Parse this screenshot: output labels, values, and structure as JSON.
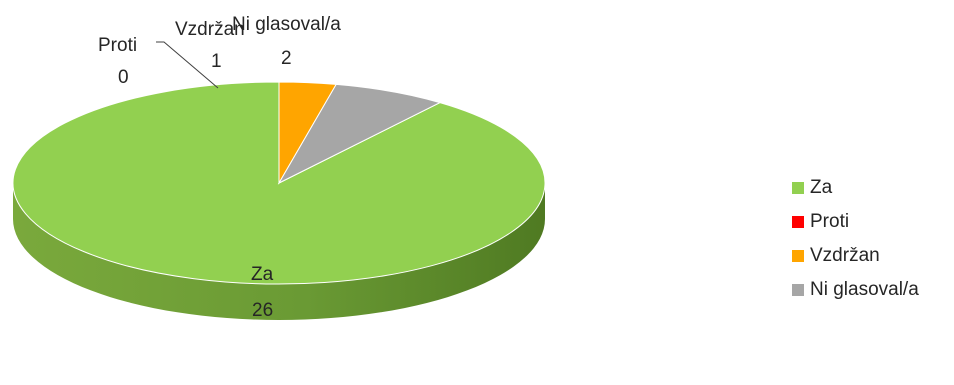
{
  "chart_data": {
    "type": "pie",
    "style": "3d",
    "categories": [
      "Za",
      "Proti",
      "Vzdržan",
      "Ni glasoval/a"
    ],
    "values": [
      26,
      0,
      1,
      2
    ],
    "colors": [
      "#92D050",
      "#FF0000",
      "#FFA500",
      "#A6A6A6"
    ],
    "data_labels": [
      {
        "name": "Za",
        "value": "26"
      },
      {
        "name": "Proti",
        "value": "0"
      },
      {
        "name": "Vzdržan",
        "value": "1"
      },
      {
        "name": "Ni glasoval/a",
        "value": "2"
      }
    ],
    "legend_placement": "right"
  },
  "legend": {
    "items": [
      {
        "label": "Za",
        "color": "#92D050"
      },
      {
        "label": "Proti",
        "color": "#FF0000"
      },
      {
        "label": "Vzdržan",
        "color": "#FFA500"
      },
      {
        "label": "Ni glasoval/a",
        "color": "#A6A6A6"
      }
    ]
  }
}
